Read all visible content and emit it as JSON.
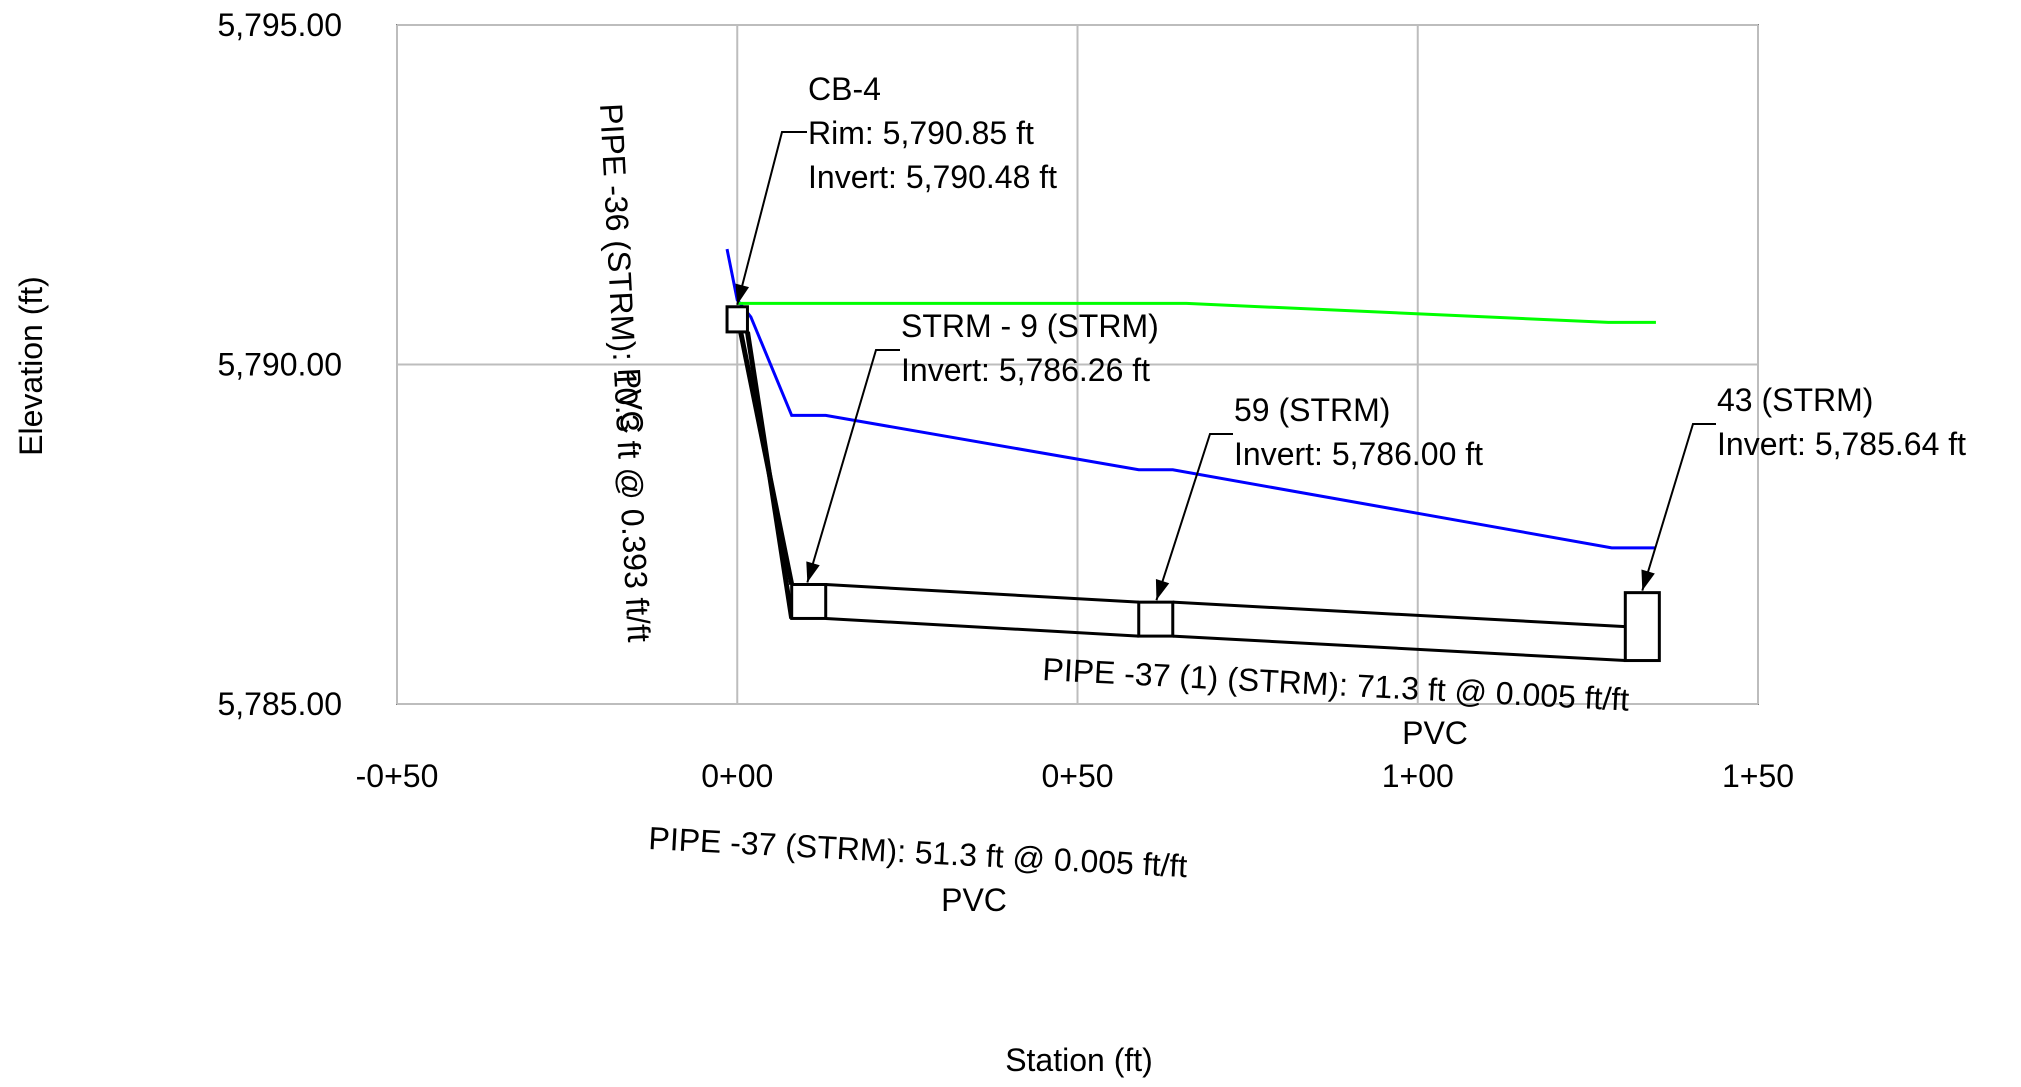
{
  "chart_data": {
    "type": "line",
    "xlabel": "Station (ft)",
    "ylabel": "Elevation (ft)",
    "xlim": [
      -50,
      150
    ],
    "ylim": [
      5785,
      5795
    ],
    "x_ticks": [
      -50,
      0,
      50,
      100,
      150
    ],
    "x_tick_labels": [
      "-0+50",
      "0+00",
      "0+50",
      "1+00",
      "1+50"
    ],
    "y_ticks": [
      5785,
      5790,
      5795
    ],
    "y_tick_labels": [
      "5,785.00",
      "5,790.00",
      "5,795.00"
    ],
    "grid": true,
    "colors": {
      "hgl": "#0000ff",
      "ground": "#00ff00",
      "pipe": "#000000",
      "grid": "#bdbdbd"
    },
    "series": [
      {
        "values": [
          [
            -1.5,
            5791.7
          ],
          [
            0,
            5790.95
          ],
          [
            2,
            5790.7
          ],
          [
            8,
            5789.25
          ],
          [
            13,
            5789.25
          ],
          [
            59,
            5788.45
          ],
          [
            64,
            5788.45
          ],
          [
            128.5,
            5787.3
          ],
          [
            135,
            5787.3
          ]
        ]
      },
      {
        "values": [
          [
            0,
            5790.9
          ],
          [
            30,
            5790.9
          ],
          [
            66,
            5790.9
          ],
          [
            128,
            5790.62
          ],
          [
            135,
            5790.62
          ]
        ]
      }
    ],
    "structures": [
      {
        "name": "CB-4",
        "x": 0,
        "x_left": -1.5,
        "x_right": 1.5,
        "bottom": 5790.48,
        "top": 5790.85
      },
      {
        "name": "STRM - 9 (STRM)",
        "x": 10.3,
        "x_left": 8,
        "x_right": 13,
        "bottom": 5786.26,
        "top": 5786.76
      },
      {
        "name": "59 (STRM)",
        "x": 61.6,
        "x_left": 59,
        "x_right": 64,
        "bottom": 5786.0,
        "top": 5786.5
      },
      {
        "name": "43 (STRM)",
        "x": 130.5,
        "x_left": 130.5,
        "x_right": 135.5,
        "bottom": 5785.64,
        "top": 5786.64
      }
    ],
    "pipes": [
      {
        "from": [
          1.5,
          5790.48
        ],
        "to": [
          8,
          5786.26
        ],
        "top_from": [
          0.5,
          5790.48
        ],
        "top_to": [
          8,
          5786.76
        ]
      },
      {
        "from": [
          13,
          5786.26
        ],
        "to": [
          59,
          5786.0
        ],
        "top_from": [
          13,
          5786.76
        ],
        "top_to": [
          59,
          5786.5
        ]
      },
      {
        "from": [
          64,
          5786.0
        ],
        "to": [
          130.5,
          5785.64
        ],
        "top_from": [
          64,
          5786.5
        ],
        "top_to": [
          130.5,
          5786.14
        ]
      }
    ],
    "annotations": {
      "cb4": {
        "lines": [
          "CB-4",
          "Rim: 5,790.85 ft",
          "Invert: 5,790.48 ft"
        ]
      },
      "strm9": {
        "lines": [
          "STRM - 9 (STRM)",
          "Invert: 5,786.26 ft"
        ]
      },
      "s59": {
        "lines": [
          "59 (STRM)",
          "Invert: 5,786.00 ft"
        ]
      },
      "s43": {
        "lines": [
          "43 (STRM)",
          "Invert: 5,785.64 ft"
        ]
      },
      "pipe36": {
        "lines": [
          "PIPE -36 (STRM): 10.3 ft @ 0.393 ft/ft",
          "PVC"
        ]
      },
      "pipe37": {
        "lines": [
          "PIPE -37 (STRM): 51.3 ft @ 0.005 ft/ft",
          "PVC"
        ]
      },
      "pipe37_1": {
        "lines": [
          "PIPE -37 (1) (STRM): 71.3 ft @ 0.005 ft/ft",
          "PVC"
        ]
      }
    }
  }
}
